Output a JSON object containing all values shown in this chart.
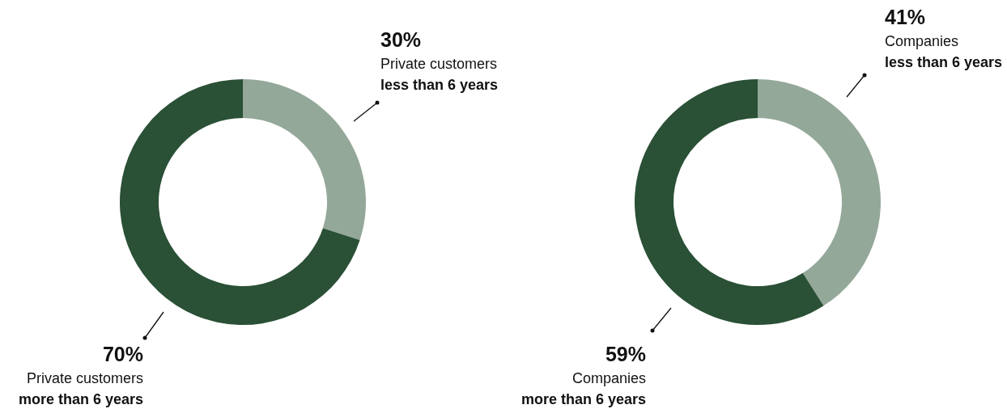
{
  "chart_data": [
    {
      "type": "donut",
      "categories": [
        "Private customers\nless than 6 years",
        "Private customers\nmore than 6 years"
      ],
      "values": [
        30,
        70
      ],
      "value_labels": [
        "30%",
        "70%"
      ],
      "colors": [
        "#94a89a",
        "#2a5036"
      ]
    },
    {
      "type": "donut",
      "categories": [
        "Companies\nless than 6 years",
        "Companies\nmore than 6 years"
      ],
      "values": [
        41,
        59
      ],
      "value_labels": [
        "41%",
        "59%"
      ],
      "colors": [
        "#94a89a",
        "#2a5036"
      ]
    }
  ]
}
